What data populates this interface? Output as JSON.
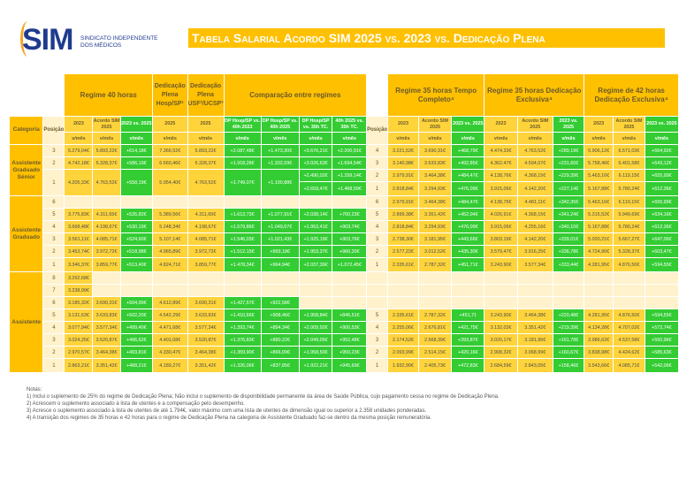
{
  "logo": {
    "brand": "SIM",
    "line1": "SINDICATO INDEPENDENTE",
    "line2": "DOS MÉDICOS"
  },
  "title": "Tabela Salarial Acordo SIM 2025 vs. 2023 vs. Dedicação Plena",
  "colors": {
    "header": "#ffc000",
    "value": "#ffd43b",
    "difference": "#33cc33",
    "empty": "#fff2cc"
  },
  "header": {
    "groups": [
      "Regime 40 horas",
      "Dedicação Plena Hosp/SP¹",
      "Dedicação Plena USF²/UCSP³",
      "Comparação entre regimes",
      "Regime 35 horas Tempo Completo⁴",
      "Regime 35 horas Dedicação Exclusiva⁴",
      "Regime de 42 horas Dedicação Exclusiva⁴"
    ],
    "columns": [
      "Categoria",
      "Posição",
      "2023",
      "Acordo SIM 2025",
      "2023 vs. 2025",
      "2025",
      "2025",
      "DP Hosp/SP vs. 40h 2023",
      "DP Hosp/SP vs. 40h 2025",
      "DP Hosp/SP vs. 35h TC.",
      "40h 2025 vs. 35h TC.",
      "Posição",
      "2023",
      "Acordo SIM 2025",
      "2023 vs. 2025",
      "2023",
      "Acordo SIM 2025",
      "2023 vs. 2025",
      "2023",
      "Acordo SIM 2025",
      "2023 vs. 2025"
    ],
    "unit": "v/mês"
  },
  "groups": [
    {
      "category": "Assistente Graduado Sénior",
      "rows": [
        [
          "3",
          "5.279,04€",
          "5.893,22€",
          "+614,18€",
          "7.366,52€",
          "5.893,22€",
          "+2.087,48€",
          "+1.473,30€",
          "+3.676,21€",
          "+2.200,91€",
          "4",
          "3.221,52€",
          "3.690,31€",
          "+468,79€",
          "4.474,33€",
          "4.763,52€",
          "+289,19€",
          "5.906,12€",
          "6.571,03€",
          "+664,92€"
        ],
        [
          "2",
          "4.742,18€",
          "5.328,37€",
          "+586,19€",
          "6.660,46€",
          "5.328,37€",
          "+1.918,28€",
          "+1.332,09€",
          "+3.026,63€",
          "+1.694,54€",
          "3",
          "3.140,98€",
          "3.633,83€",
          "+492,85€",
          "4.362,47€",
          "4.594,07€",
          "+231,60€",
          "5.758,46€",
          "6.401,58€",
          "+643,12€"
        ],
        [
          "1",
          "4.205,33€",
          "4.763,52€",
          "+558,19€",
          "5.954,40€",
          "4.763,52€",
          "+1.749,07€",
          "+1.190,88€",
          "+2.490,02€",
          "+1.299,14€",
          "2",
          "2.979,91€",
          "3.464,38€",
          "+484,47€",
          "4.138,76€",
          "4.368,15€",
          "+229,39€",
          "5.463,16€",
          "6.119,15€",
          "+655,99€"
        ],
        [
          null,
          null,
          null,
          null,
          null,
          null,
          null,
          null,
          "+2.659,47€",
          "+1.468,59€",
          "1",
          "2.818,84€",
          "3.294,93€",
          "+476,09€",
          "3.915,06€",
          "4.142,20€",
          "+227,14€",
          "5.167,88€",
          "5.780,24€",
          "+612,36€"
        ]
      ]
    },
    {
      "category": "Assistente Graduado",
      "rows": [
        [
          "6",
          "",
          "",
          "",
          "",
          "",
          "",
          "",
          "",
          "",
          "6",
          "2.979,91€",
          "3.464,38€",
          "+484,47€",
          "4.138,76€",
          "4.481,11€",
          "+342,35€",
          "5.463,16€",
          "6.119,15€",
          "+655,99€"
        ],
        [
          "5",
          "3.775,83€",
          "4.311,65€",
          "+535,82€",
          "5.389,56€",
          "4.311,65€",
          "+1.613,73€",
          "+1.077,91€",
          "+2.038,14€",
          "+760,23€",
          "5",
          "2.899,38€",
          "3.351,42€",
          "+452,04€",
          "4.026,91€",
          "4.368,15€",
          "+341,24€",
          "5.315,52€",
          "5.949,69€",
          "+634,16€"
        ],
        [
          "4",
          "3.668,48€",
          "4.198,67€",
          "+530,19€",
          "5.248,34€",
          "4.198,67€",
          "+1.579,86€",
          "+1.049,67€",
          "+1.953,41€",
          "+903,74€",
          "4",
          "2.818,84€",
          "3.294,93€",
          "+476,09€",
          "3.915,06€",
          "4.255,16€",
          "+340,10€",
          "5.167,88€",
          "5.780,24€",
          "+612,36€"
        ],
        [
          "3",
          "3.561,11€",
          "4.085,71€",
          "+524,60€",
          "5.107,14€",
          "4.085,71€",
          "+1.546,03€",
          "+1.021,43€",
          "+1.925,19€",
          "+903,76€",
          "3",
          "2.738,30€",
          "3.181,95€",
          "+443,66€",
          "3.803,19€",
          "4.142,20€",
          "+339,01€",
          "5.020,21€",
          "5.667,27€",
          "+647,06€"
        ],
        [
          "2",
          "3.453,74€",
          "3.972,72€",
          "+518,98€",
          "4.965,89€",
          "3.972,72€",
          "+1.512,15€",
          "+993,18€",
          "+1.953,37€",
          "+960,20€",
          "2",
          "2.577,22€",
          "3.012,52€",
          "+435,30€",
          "3.579,47€",
          "3.916,25€",
          "+336,78€",
          "4.724,90€",
          "5.328,37€",
          "+603,47€"
        ],
        [
          "1",
          "3.346,37€",
          "3.859,77€",
          "+513,40€",
          "4.824,71€",
          "3.859,77€",
          "+1.478,34€",
          "+964,94€",
          "+2.037,39€",
          "+1.072,45€",
          "1",
          "2.335,61€",
          "2.787,32€",
          "+451,71€",
          "3.243,90€",
          "3.577,34€",
          "+333,44€",
          "4.281,95€",
          "4.876,50€",
          "+594,55€"
        ]
      ]
    },
    {
      "category": "Assistente",
      "rows": [
        [
          "8",
          "3.292,68€",
          "",
          "",
          "",
          "",
          "",
          "",
          "",
          "",
          "",
          "",
          "",
          "",
          "",
          "",
          "",
          "",
          "",
          ""
        ],
        [
          "7",
          "3.238,99€",
          "",
          "",
          "",
          "",
          "",
          "",
          "",
          "",
          "",
          "",
          "",
          "",
          "",
          "",
          "",
          "",
          "",
          ""
        ],
        [
          "6",
          "3.185,32€",
          "3.690,31€",
          "+504,99€",
          "4.612,89€",
          "3.690,31€",
          "+1.427,57€",
          "+922,58€",
          "",
          "",
          "",
          "",
          "",
          "",
          "",
          "",
          "",
          "",
          "",
          ""
        ],
        [
          "5",
          "3.131,63€",
          "3.633,83€",
          "+502,20€",
          "4.542,29€",
          "3.633,83€",
          "+1.410,66€",
          "+908,46€",
          "+1.958,84€",
          "+846,51€",
          "5",
          "2.335,61€",
          "2.787,32€",
          "+451,71",
          "3.243,90€",
          "3.464,38€",
          "+220,48€",
          "4.281,95€",
          "4.876,50€",
          "+594,55€"
        ],
        [
          "4",
          "3.077,94€",
          "3.577,34€",
          "+499,40€",
          "4.471,68€",
          "3.577,34€",
          "+1.393,74€",
          "+894,34€",
          "+2.009,92€",
          "+900,53€",
          "4",
          "2.255,06€",
          "2.676,81€",
          "+421,75€",
          "3.132,03€",
          "3.351,42€",
          "+219,39€",
          "4.134,28€",
          "4.707,02€",
          "+572,74€"
        ],
        [
          "3",
          "3.024,25€",
          "3.520,87€",
          "+496,62€",
          "4.401,08€",
          "3.520,87€",
          "+1.376,83€",
          "+880,22€",
          "+2.049,05€",
          "+952,48€",
          "3",
          "2.174,52€",
          "2.568,39€",
          "+393,87€",
          "3.020,17€",
          "3.181,95€",
          "+161,78€",
          "3.986,62€",
          "4.537,58€",
          "+550,96€"
        ],
        [
          "2",
          "2.970,57€",
          "3.464,38€",
          "+493,81€",
          "4.330,47€",
          "3.464,38€",
          "+1.359,90€",
          "+866,09€",
          "+1.958,50€",
          "+950,23€",
          "2",
          "2.093,99€",
          "2.514,15€",
          "+420,16€",
          "2.908,32€",
          "3.068,99€",
          "+160,67€",
          "3.838,98€",
          "4.424,62€",
          "+585,63€"
        ],
        [
          "1",
          "2.863,21€",
          "3.351,42€",
          "+488,21€",
          "4.189,27€",
          "3.351,42€",
          "+1.326,06€",
          "+837,85€",
          "+1.922,21€",
          "+945,69€",
          "1",
          "1.932,90€",
          "2.405,73€",
          "+472,83€",
          "2.684,59€",
          "2.843,05€",
          "+158,46€",
          "3.543,66€",
          "4.085,71€",
          "+542,06€"
        ]
      ]
    }
  ],
  "notes": {
    "heading": "Notas:",
    "items": [
      "1) Inclui o suplemento de 25% do regime de Dedicação Plena; Não inclui o suplemento de disponibilidade permanente da área de Saúde Pública, cujo pagamento cessa no regime de Dedicação Plena.",
      "2) Acrescem o suplemento associado à lista de utentes e a compensação pelo desempenho.",
      "3) Acresce o suplemento associado à lista de utentes de até 1.794€, valor máximo com uma lista de utentes de dimensão igual ou superior a 2.358 unidades ponderadas.",
      "4) A transição dos regimes de 35 horas e 42 horas para o regime de Dedicação Plena na categoria de Assistente Graduado faz-se dentro da mesma posição remuneratória."
    ]
  }
}
